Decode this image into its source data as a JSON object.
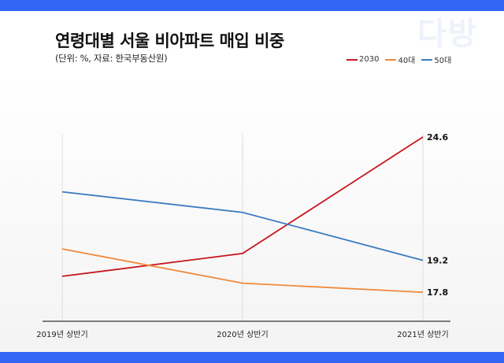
{
  "watermark": "다방",
  "chart_data": {
    "type": "line",
    "title": "연령대별 서울 비아파트 매입 비중",
    "subtitle": "(단위: %, 자료: 한국부동산원)",
    "categories": [
      "2019년 상반기",
      "2020년 상반기",
      "2021년 상반기"
    ],
    "series": [
      {
        "name": "2030",
        "color": "#c8161d",
        "values": [
          18.5,
          19.5,
          24.6
        ]
      },
      {
        "name": "40대",
        "color": "#f08a3c",
        "values": [
          19.7,
          18.2,
          17.8
        ]
      },
      {
        "name": "50대",
        "color": "#3a7cc0",
        "values": [
          22.2,
          21.3,
          19.2
        ]
      }
    ],
    "data_labels": [
      "24.6",
      "17.8",
      "19.2"
    ],
    "ylim": [
      16.5,
      24.6
    ],
    "grid": "vertical",
    "legend": "top-right"
  }
}
